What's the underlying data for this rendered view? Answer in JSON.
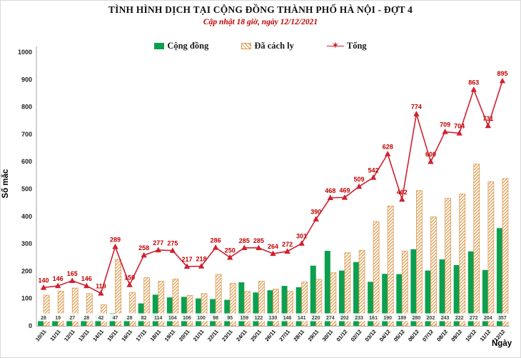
{
  "header": {
    "title": "TÌNH HÌNH DỊCH TẠI CỘNG ĐỒNG THÀNH PHỐ HÀ NỘI - ĐỢT 4",
    "subtitle": "Cập nhật 18 giờ, ngày 12/12/2021"
  },
  "axes": {
    "y_title": "Số mắc",
    "x_title": "Ngày"
  },
  "colors": {
    "community_green": "#0ba04f",
    "quarantine_tan": "#e4a35c",
    "total_red": "#cf2030",
    "label_red": "#c00000"
  },
  "chart_data": {
    "type": "bar",
    "subtype": "grouped-bars-with-line",
    "title": "TÌNH HÌNH DỊCH TẠI CỘNG ĐỒNG THÀNH PHỐ HÀ NỘI - ĐỢT 4",
    "subtitle": "Cập nhật 18 giờ, ngày 12/12/2021",
    "xlabel": "Ngày",
    "ylabel": "Số mắc",
    "ylim": [
      0,
      1000
    ],
    "y_ticks": [
      0,
      100,
      200,
      300,
      400,
      500,
      600,
      700,
      800,
      900,
      1000
    ],
    "grid": "off",
    "legend_position": "top",
    "categories": [
      "10/11",
      "11/11",
      "12/11",
      "13/11",
      "14/11",
      "15/11",
      "16/11",
      "17/11",
      "18/11",
      "19/11",
      "20/11",
      "21/11",
      "22/11",
      "23/11",
      "24/11",
      "25/11",
      "26/11",
      "27/11",
      "28/11",
      "29/11",
      "30/11",
      "01/12",
      "02/12",
      "03/12",
      "04/12",
      "05/12",
      "06/12",
      "07/12",
      "08/12",
      "09/12",
      "10/12",
      "11/12",
      "12/12"
    ],
    "series": [
      {
        "name": "Cộng đồng",
        "type": "bar",
        "color": "#0ba04f",
        "labels_shown": true,
        "values": [
          28,
          19,
          27,
          28,
          42,
          47,
          28,
          82,
          114,
          104,
          106,
          100,
          98,
          95,
          159,
          122,
          130,
          146,
          141,
          220,
          274,
          202,
          233,
          161,
          190,
          189,
          280,
          202,
          243,
          222,
          272,
          204,
          357
        ]
      },
      {
        "name": "Đã cách ly",
        "type": "bar",
        "style": "hatched",
        "color": "#e4a35c",
        "border": "#d89c55",
        "labels_shown": false,
        "values_estimated_total_minus_community": [
          112,
          127,
          138,
          118,
          77,
          242,
          122,
          176,
          163,
          171,
          111,
          118,
          188,
          155,
          126,
          163,
          134,
          126,
          160,
          170,
          194,
          267,
          276,
          381,
          438,
          273,
          494,
          398,
          466,
          482,
          591,
          527,
          538
        ]
      },
      {
        "name": "Tổng",
        "type": "line",
        "color": "#cf2030",
        "marker": "star",
        "labels_shown": true,
        "values": [
          140,
          146,
          165,
          146,
          119,
          289,
          150,
          258,
          277,
          275,
          217,
          218,
          286,
          250,
          285,
          285,
          264,
          272,
          301,
          390,
          468,
          469,
          509,
          542,
          628,
          462,
          774,
          600,
          709,
          704,
          863,
          731,
          895
        ]
      }
    ]
  }
}
